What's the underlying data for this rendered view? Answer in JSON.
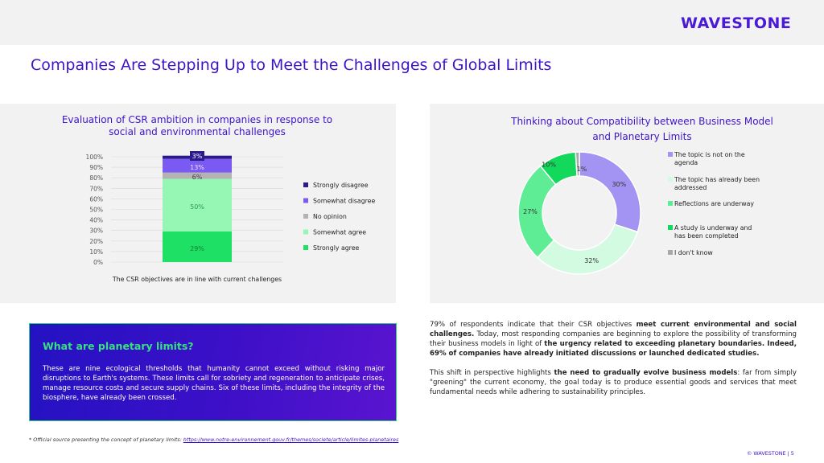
{
  "header": {
    "logo_text": "WAVESTONE",
    "title": "Companies Are Stepping Up to Meet the Challenges of Global Limits"
  },
  "chart_data": [
    {
      "type": "bar",
      "stacked": true,
      "title": "Evaluation of CSR ambition in companies in response to social and environmental challenges",
      "categories": [
        "The CSR objectives are in line with current challenges"
      ],
      "ylim": [
        0,
        100
      ],
      "yticks": [
        "0%",
        "10%",
        "20%",
        "30%",
        "40%",
        "50%",
        "60%",
        "70%",
        "80%",
        "90%",
        "100%"
      ],
      "grid": true,
      "legend_position": "right",
      "series": [
        {
          "name": "Strongly agree",
          "values": [
            29
          ],
          "label": "29%",
          "color": "#1ee065"
        },
        {
          "name": "Somewhat agree",
          "values": [
            50
          ],
          "label": "50%",
          "color": "#96f7b5"
        },
        {
          "name": "No opinion",
          "values": [
            6
          ],
          "label": "6%",
          "color": "#b3b3b3"
        },
        {
          "name": "Somewhat disagree",
          "values": [
            13
          ],
          "label": "13%",
          "color": "#7b5af2"
        },
        {
          "name": "Strongly disagree",
          "values": [
            3
          ],
          "label": "3%",
          "color": "#2a1a8c"
        }
      ],
      "legend_order": [
        "Strongly disagree",
        "Somewhat disagree",
        "No opinion",
        "Somewhat agree",
        "Strongly agree"
      ]
    },
    {
      "type": "pie",
      "donut": true,
      "title": "Thinking about Compatibility between Business Model and Planetary Limits",
      "legend_position": "right",
      "slices": [
        {
          "name": "The topic is not on the agenda",
          "value": 30,
          "label": "30%",
          "color": "#a393f2"
        },
        {
          "name": "The topic has already been addressed",
          "value": 32,
          "label": "32%",
          "color": "#d3fbe2"
        },
        {
          "name": "Reflections are underway",
          "value": 27,
          "label": "27%",
          "color": "#5eec95"
        },
        {
          "name": "A study is underway and has been completed",
          "value": 10,
          "label": "10%",
          "color": "#12d85c"
        },
        {
          "name": "I don't know",
          "value": 1,
          "label": "1%",
          "color": "#a8a8a8"
        }
      ]
    }
  ],
  "info_box": {
    "heading": "What are planetary limits?",
    "text": "These are nine ecological thresholds that humanity cannot exceed without risking major disruptions to Earth's systems. These limits call for sobriety and regeneration to anticipate crises, manage resource costs and secure supply chains. Six of these limits, including the integrity of the biosphere, have already been crossed."
  },
  "body": {
    "p1_a": "79% of respondents indicate that their CSR objectives ",
    "p1_b": "meet current environmental and social challenges.",
    "p1_c": " Today, most responding companies are beginning to explore the possibility of transforming their business models in light of ",
    "p1_d": "the urgency related to exceeding planetary boundaries. Indeed, 69% of companies have already initiated discussions or launched dedicated studies.",
    "p2_a": "This shift in perspective highlights ",
    "p2_b": "the need to gradually evolve business models",
    "p2_c": ": far from simply \"greening\" the current economy, the goal today is to produce essential goods and services that meet fundamental needs while adhering to sustainability principles."
  },
  "footer": {
    "footnote_prefix": "* Official source presenting the concept of planetary limits: ",
    "footnote_link": "https://www.notre-environnement.gouv.fr/themes/societe/article/limites-planetaires",
    "copyright": "© WAVESTONE | 5"
  }
}
